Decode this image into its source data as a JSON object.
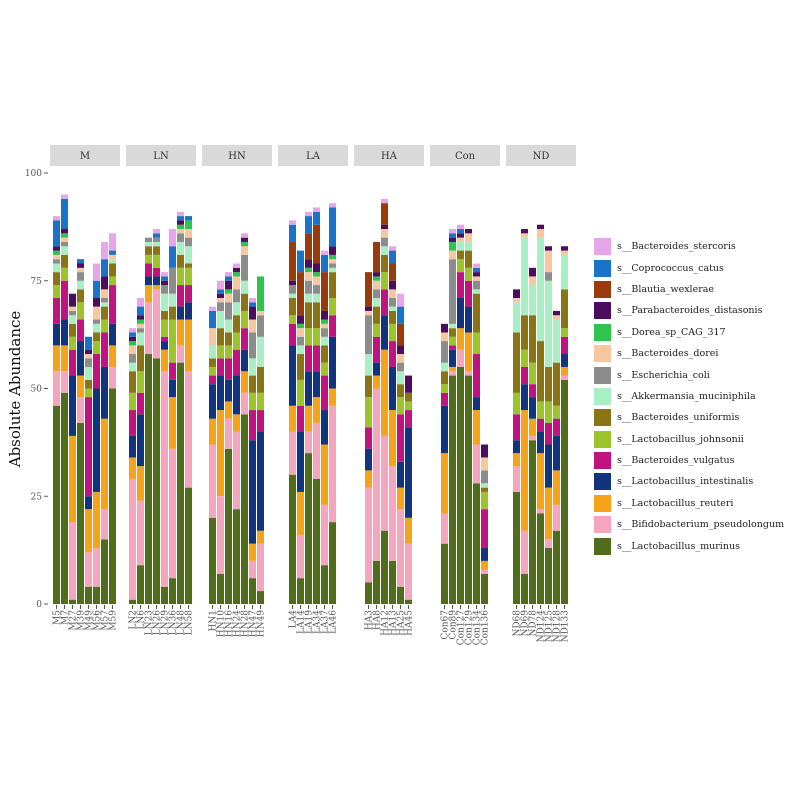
{
  "chart_data": {
    "type": "bar",
    "stacked": true,
    "ylabel": "Absolute Abundance",
    "xlabel": "",
    "ylim": [
      0,
      100
    ],
    "yticks": [
      0,
      25,
      50,
      75,
      100
    ],
    "grid": false,
    "legend_position": "right",
    "facet_strip_color": "#d9d9d9",
    "series": [
      {
        "name": "s__Lactobacillus_murinus",
        "color": "#4f6d1a"
      },
      {
        "name": "s__Bifidobacterium_pseudolongum",
        "color": "#f4a6bf"
      },
      {
        "name": "s__Lactobacillus_reuteri",
        "color": "#f7a21b"
      },
      {
        "name": "s__Lactobacillus_intestinalis",
        "color": "#12347f"
      },
      {
        "name": "s__Bacteroides_vulgatus",
        "color": "#c0137f"
      },
      {
        "name": "s__Lactobacillus_johnsonii",
        "color": "#9dc52b"
      },
      {
        "name": "s__Bacteroides_uniformis",
        "color": "#8a7416"
      },
      {
        "name": "s__Akkermansia_muciniphila",
        "color": "#a8efc4"
      },
      {
        "name": "s__Escherichia_coli",
        "color": "#8c8c8c"
      },
      {
        "name": "s__Bacteroides_dorei",
        "color": "#f7c8a0"
      },
      {
        "name": "s__Dorea_sp_CAG_317",
        "color": "#2fc44e"
      },
      {
        "name": "s__Parabacteroides_distasonis",
        "color": "#4c0d5e"
      },
      {
        "name": "s__Blautia_wexlerae",
        "color": "#9a3b0d"
      },
      {
        "name": "s__Coprococcus_catus",
        "color": "#1b73c9"
      },
      {
        "name": "s__Bacteroides_stercoris",
        "color": "#e8a6ea"
      }
    ],
    "groups": [
      {
        "name": "M",
        "samples": [
          {
            "label": "M5",
            "values": [
              46,
              8,
              6,
              5,
              6,
              3,
              3,
              2,
              1,
              1,
              1,
              1,
              0,
              6,
              1
            ]
          },
          {
            "label": "M7",
            "values": [
              49,
              5,
              6,
              6,
              9,
              3,
              3,
              2,
              1,
              1,
              1,
              1,
              0,
              7,
              1
            ]
          },
          {
            "label": "M27",
            "values": [
              1,
              18,
              20,
              14,
              6,
              3,
              3,
              2,
              1,
              1,
              0,
              3,
              0,
              0,
              0
            ]
          },
          {
            "label": "M39",
            "values": [
              42,
              6,
              5,
              8,
              5,
              4,
              3,
              2,
              2,
              1,
              0,
              1,
              0,
              1,
              0
            ]
          },
          {
            "label": "M49",
            "values": [
              4,
              8,
              10,
              3,
              23,
              2,
              2,
              3,
              2,
              1,
              0,
              1,
              0,
              3,
              0
            ]
          },
          {
            "label": "M56",
            "values": [
              4,
              9,
              13,
              24,
              8,
              3,
              2,
              2,
              1,
              3,
              0,
              2,
              0,
              4,
              4
            ]
          },
          {
            "label": "M57",
            "values": [
              15,
              7,
              21,
              12,
              8,
              3,
              3,
              1,
              1,
              2,
              0,
              3,
              0,
              4,
              4
            ]
          },
          {
            "label": "M59",
            "values": [
              50,
              5,
              5,
              5,
              9,
              2,
              3,
              1,
              0,
              1,
              0,
              0,
              0,
              1,
              4
            ]
          }
        ]
      },
      {
        "name": "LN",
        "samples": [
          {
            "label": "LN2",
            "values": [
              1,
              28,
              5,
              5,
              6,
              4,
              5,
              2,
              2,
              2,
              1,
              1,
              0,
              1,
              1
            ]
          },
          {
            "label": "LN6",
            "values": [
              9,
              15,
              8,
              12,
              5,
              5,
              6,
              3,
              1,
              1,
              1,
              1,
              0,
              2,
              2
            ]
          },
          {
            "label": "LN23",
            "values": [
              58,
              12,
              4,
              2,
              3,
              2,
              2,
              1,
              1,
              0,
              0,
              0,
              0,
              0,
              0
            ]
          },
          {
            "label": "LN26",
            "values": [
              57,
              16,
              1,
              2,
              2,
              3,
              2,
              1,
              1,
              0,
              0,
              0,
              0,
              1,
              1
            ]
          },
          {
            "label": "LN29",
            "values": [
              4,
              50,
              5,
              2,
              1,
              4,
              2,
              4,
              2,
              0,
              0,
              1,
              0,
              1,
              1
            ]
          },
          {
            "label": "LN36",
            "values": [
              6,
              30,
              12,
              4,
              4,
              10,
              3,
              3,
              6,
              0,
              0,
              0,
              0,
              5,
              4
            ]
          },
          {
            "label": "LN48",
            "values": [
              56,
              4,
              6,
              3,
              5,
              4,
              3,
              3,
              2,
              1,
              1,
              1,
              0,
              1,
              1
            ]
          },
          {
            "label": "LN58",
            "values": [
              27,
              27,
              12,
              4,
              4,
              4,
              1,
              4,
              2,
              2,
              2,
              0,
              0,
              1,
              0
            ]
          }
        ]
      },
      {
        "name": "HN",
        "samples": [
          {
            "label": "HN1",
            "values": [
              20,
              17,
              6,
              8,
              2,
              2,
              2,
              3,
              0,
              4,
              0,
              0,
              0,
              4,
              1
            ]
          },
          {
            "label": "HN10",
            "values": [
              7,
              18,
              20,
              8,
              4,
              3,
              4,
              4,
              2,
              1,
              0,
              1,
              0,
              1,
              2
            ]
          },
          {
            "label": "HN16",
            "values": [
              36,
              7,
              4,
              5,
              5,
              3,
              3,
              3,
              4,
              2,
              1,
              2,
              0,
              1,
              1
            ]
          },
          {
            "label": "HN24",
            "values": [
              22,
              18,
              4,
              9,
              6,
              4,
              4,
              3,
              3,
              3,
              1,
              1,
              0,
              0,
              1
            ]
          },
          {
            "label": "HN28",
            "values": [
              44,
              5,
              5,
              5,
              5,
              4,
              4,
              3,
              6,
              2,
              1,
              1,
              0,
              0,
              1
            ]
          },
          {
            "label": "HN47",
            "values": [
              6,
              4,
              4,
              24,
              7,
              4,
              4,
              4,
              6,
              3,
              0,
              3,
              0,
              1,
              1
            ]
          },
          {
            "label": "HN49",
            "values": [
              3,
              11,
              3,
              23,
              5,
              4,
              6,
              7,
              5,
              1,
              8,
              0,
              0,
              0,
              0
            ]
          }
        ]
      },
      {
        "name": "LA",
        "samples": [
          {
            "label": "LA4",
            "values": [
              30,
              10,
              6,
              14,
              5,
              2,
              4,
              1,
              2,
              0,
              0,
              1,
              9,
              4,
              1
            ]
          },
          {
            "label": "LA14",
            "values": [
              6,
              10,
              10,
              14,
              6,
              6,
              6,
              2,
              2,
              2,
              1,
              2,
              10,
              5,
              0
            ]
          },
          {
            "label": "LA19",
            "values": [
              35,
              5,
              6,
              8,
              6,
              4,
              6,
              2,
              3,
              2,
              1,
              2,
              6,
              4,
              1
            ]
          },
          {
            "label": "LA34",
            "values": [
              29,
              13,
              6,
              6,
              6,
              4,
              6,
              2,
              2,
              2,
              1,
              2,
              9,
              3,
              1
            ]
          },
          {
            "label": "LA37",
            "values": [
              9,
              14,
              14,
              8,
              8,
              3,
              4,
              2,
              2,
              1,
              1,
              2,
              9,
              4,
              1
            ]
          },
          {
            "label": "LA46",
            "values": [
              19,
              27,
              4,
              12,
              5,
              4,
              6,
              1,
              1,
              1,
              1,
              2,
              0,
              9,
              1
            ]
          }
        ]
      },
      {
        "name": "HA",
        "samples": [
          {
            "label": "HA3",
            "values": [
              5,
              22,
              4,
              5,
              5,
              7,
              5,
              5,
              9,
              1,
              0,
              1,
              8,
              0,
              0
            ]
          },
          {
            "label": "HA8",
            "values": [
              10,
              40,
              3,
              3,
              6,
              3,
              4,
              2,
              2,
              2,
              1,
              1,
              7,
              0,
              0
            ]
          },
          {
            "label": "HA12",
            "values": [
              17,
              22,
              20,
              8,
              6,
              4,
              4,
              2,
              2,
              2,
              0,
              1,
              5,
              0,
              1
            ]
          },
          {
            "label": "HA13",
            "values": [
              10,
              22,
              13,
              10,
              6,
              4,
              3,
              1,
              2,
              2,
              0,
              2,
              4,
              3,
              1
            ]
          },
          {
            "label": "HA25",
            "values": [
              4,
              18,
              5,
              6,
              11,
              4,
              3,
              3,
              2,
              2,
              0,
              2,
              5,
              4,
              3
            ]
          },
          {
            "label": "HA45",
            "values": [
              1,
              13,
              6,
              21,
              4,
              2,
              2,
              0,
              0,
              0,
              0,
              4,
              0,
              0,
              0
            ]
          }
        ]
      },
      {
        "name": "Con",
        "samples": [
          {
            "label": "Con67",
            "values": [
              14,
              7,
              14,
              11,
              3,
              2,
              3,
              2,
              5,
              2,
              0,
              2,
              0,
              0,
              0
            ]
          },
          {
            "label": "Con89",
            "values": [
              53,
              1,
              1,
              4,
              1,
              2,
              2,
              1,
              15,
              2,
              2,
              1,
              0,
              1,
              1
            ]
          },
          {
            "label": "Con127",
            "values": [
              55,
              4,
              5,
              7,
              6,
              3,
              2,
              2,
              0,
              1,
              0,
              1,
              0,
              1,
              1
            ]
          },
          {
            "label": "Con129",
            "values": [
              53,
              1,
              9,
              6,
              6,
              3,
              4,
              2,
              0,
              2,
              0,
              1,
              0,
              0,
              0
            ]
          },
          {
            "label": "Con134",
            "values": [
              28,
              9,
              8,
              3,
              10,
              5,
              9,
              1,
              2,
              1,
              0,
              1,
              0,
              1,
              1
            ]
          },
          {
            "label": "Con136",
            "values": [
              7,
              1,
              2,
              3,
              9,
              4,
              1,
              1,
              3,
              3,
              0,
              3,
              0,
              0,
              0
            ]
          }
        ]
      },
      {
        "name": "ND",
        "samples": [
          {
            "label": "ND68",
            "values": [
              26,
              6,
              3,
              3,
              6,
              5,
              14,
              7,
              0,
              1,
              0,
              2,
              0,
              0,
              0
            ]
          },
          {
            "label": "ND69",
            "values": [
              7,
              10,
              28,
              6,
              4,
              4,
              8,
              18,
              0,
              1,
              0,
              1,
              0,
              0,
              0
            ]
          },
          {
            "label": "ND78",
            "values": [
              38,
              1,
              4,
              5,
              3,
              5,
              11,
              7,
              0,
              2,
              0,
              2,
              0,
              0,
              0
            ]
          },
          {
            "label": "ND124",
            "values": [
              21,
              1,
              13,
              5,
              3,
              4,
              14,
              24,
              0,
              2,
              0,
              1,
              0,
              0,
              0
            ]
          },
          {
            "label": "ND125",
            "values": [
              13,
              2,
              12,
              10,
              5,
              5,
              8,
              20,
              2,
              5,
              0,
              1,
              0,
              0,
              0
            ]
          },
          {
            "label": "ND128",
            "values": [
              17,
              6,
              8,
              8,
              4,
              3,
              10,
              10,
              0,
              1,
              0,
              1,
              0,
              0,
              0
            ]
          },
          {
            "label": "ND133",
            "values": [
              52,
              1,
              2,
              3,
              4,
              2,
              9,
              8,
              0,
              1,
              0,
              1,
              0,
              0,
              0
            ]
          }
        ]
      }
    ]
  }
}
